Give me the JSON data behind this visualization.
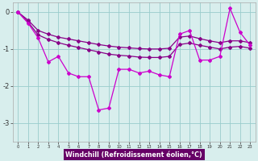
{
  "hours": [
    0,
    1,
    2,
    3,
    4,
    5,
    6,
    7,
    8,
    9,
    10,
    11,
    12,
    13,
    14,
    15,
    16,
    17,
    18,
    19,
    20,
    21,
    22,
    23
  ],
  "jagged": [
    0.0,
    -0.3,
    -0.7,
    -1.35,
    -1.2,
    -1.65,
    -1.75,
    -1.75,
    -2.65,
    -2.6,
    -1.55,
    -1.55,
    -1.65,
    -1.6,
    -1.7,
    -1.75,
    -0.6,
    -0.5,
    -1.3,
    -1.3,
    -1.2,
    0.1,
    -0.55,
    -0.9
  ],
  "smooth_top": [
    0.0,
    -0.22,
    -0.5,
    -0.6,
    -0.68,
    -0.73,
    -0.78,
    -0.83,
    -0.88,
    -0.92,
    -0.95,
    -0.97,
    -0.99,
    -1.0,
    -1.0,
    -0.98,
    -0.68,
    -0.65,
    -0.72,
    -0.78,
    -0.83,
    -0.78,
    -0.78,
    -0.83
  ],
  "smooth_bot": [
    0.0,
    -0.27,
    -0.62,
    -0.74,
    -0.83,
    -0.9,
    -0.96,
    -1.02,
    -1.08,
    -1.14,
    -1.17,
    -1.19,
    -1.22,
    -1.23,
    -1.23,
    -1.2,
    -0.88,
    -0.84,
    -0.9,
    -0.95,
    -1.0,
    -0.95,
    -0.93,
    -0.98
  ],
  "line_color_dark": "#880088",
  "line_color_bright": "#cc00cc",
  "background_color": "#d8eeed",
  "grid_color": "#99cccc",
  "xlabel": "Windchill (Refroidissement éolien,°C)",
  "xlabel_bg": "#660066",
  "xlabel_color": "#ffffff",
  "ylim": [
    -3.5,
    0.25
  ],
  "xlim": [
    -0.5,
    23.5
  ],
  "yticks": [
    0,
    -1,
    -2,
    -3
  ]
}
